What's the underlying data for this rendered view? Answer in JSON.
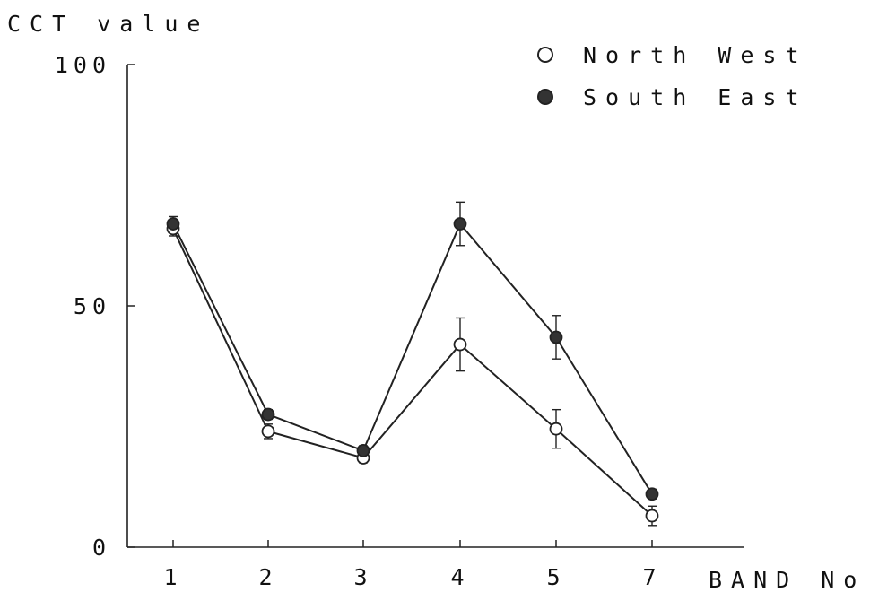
{
  "chart_data": {
    "type": "line",
    "ylabel": "CCT value",
    "xlabel": "BAND No.",
    "categories": [
      "1",
      "2",
      "3",
      "4",
      "5",
      "7"
    ],
    "ylim": [
      0,
      100
    ],
    "yticks": [
      0,
      50,
      100
    ],
    "grid": false,
    "legend_position": "top-right",
    "series": [
      {
        "name": "North West",
        "marker": "open-circle",
        "values": [
          66,
          24,
          18.5,
          42,
          24.5,
          6.5
        ],
        "error": [
          1.5,
          1.5,
          1,
          5.5,
          4,
          2
        ]
      },
      {
        "name": "South East",
        "marker": "filled-circle",
        "values": [
          67,
          27.5,
          20,
          67,
          43.5,
          11
        ],
        "error": [
          1.5,
          1,
          1,
          4.5,
          4.5,
          1
        ]
      }
    ],
    "colors": {
      "line": "#222222",
      "open_marker_fill": "#ffffff",
      "filled_marker_fill": "#333333"
    }
  }
}
